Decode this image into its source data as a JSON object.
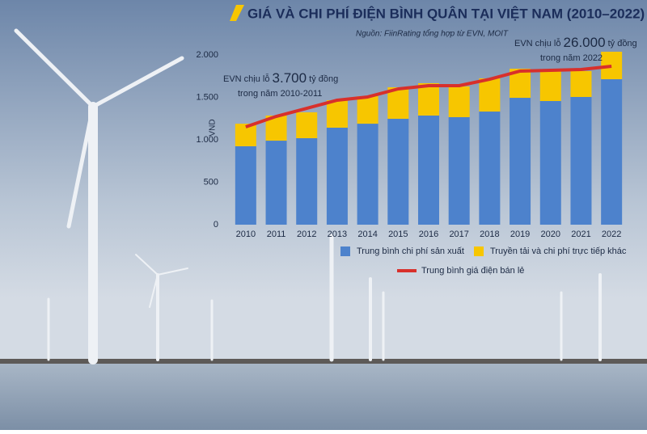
{
  "chart_data": {
    "type": "bar",
    "stacked": true,
    "title": "GIÁ VÀ CHI PHÍ ĐIỆN BÌNH QUÂN TẠI VIỆT NAM (2010–2022)",
    "subtitle": "Nguồn: FiinRating tổng hợp từ EVN, MOIT",
    "y_label": "VND",
    "categories": [
      "2010",
      "2011",
      "2012",
      "2013",
      "2014",
      "2015",
      "2016",
      "2017",
      "2018",
      "2019",
      "2020",
      "2021",
      "2022"
    ],
    "series": [
      {
        "name": "Trung bình chi phí sản xuất",
        "color": "#4d82cc",
        "type": "bar",
        "values": [
          924,
          990,
          1019,
          1143,
          1190,
          1248,
          1286,
          1267,
          1333,
          1495,
          1457,
          1505,
          1714
        ]
      },
      {
        "name": "Truyền tải và chi phí trực tiếp khác",
        "color": "#f7c600",
        "type": "bar",
        "values": [
          266,
          296,
          305,
          324,
          324,
          371,
          381,
          362,
          391,
          343,
          362,
          305,
          324
        ]
      },
      {
        "name": "Trung bình giá điện bán lẻ",
        "color": "#d8302b",
        "type": "line",
        "values": [
          1152,
          1276,
          1371,
          1467,
          1505,
          1600,
          1638,
          1638,
          1714,
          1810,
          1819,
          1829,
          1867
        ]
      }
    ],
    "ylim": [
      0,
      2100
    ],
    "yticks": [
      0,
      500,
      {
        "value": 1000,
        "label": "1.000"
      },
      {
        "value": 1500,
        "label": "1.500"
      },
      {
        "value": 2000,
        "label": "2.000"
      }
    ],
    "annotations": [
      {
        "parts": [
          "EVN chịu lỗ ",
          "3.700",
          " tỷ đồng"
        ],
        "line2": "trong năm 2010-2011"
      },
      {
        "parts": [
          "EVN chịu lỗ ",
          "26.000",
          " tỷ đồng"
        ],
        "line2": "trong năm 2022"
      }
    ]
  }
}
